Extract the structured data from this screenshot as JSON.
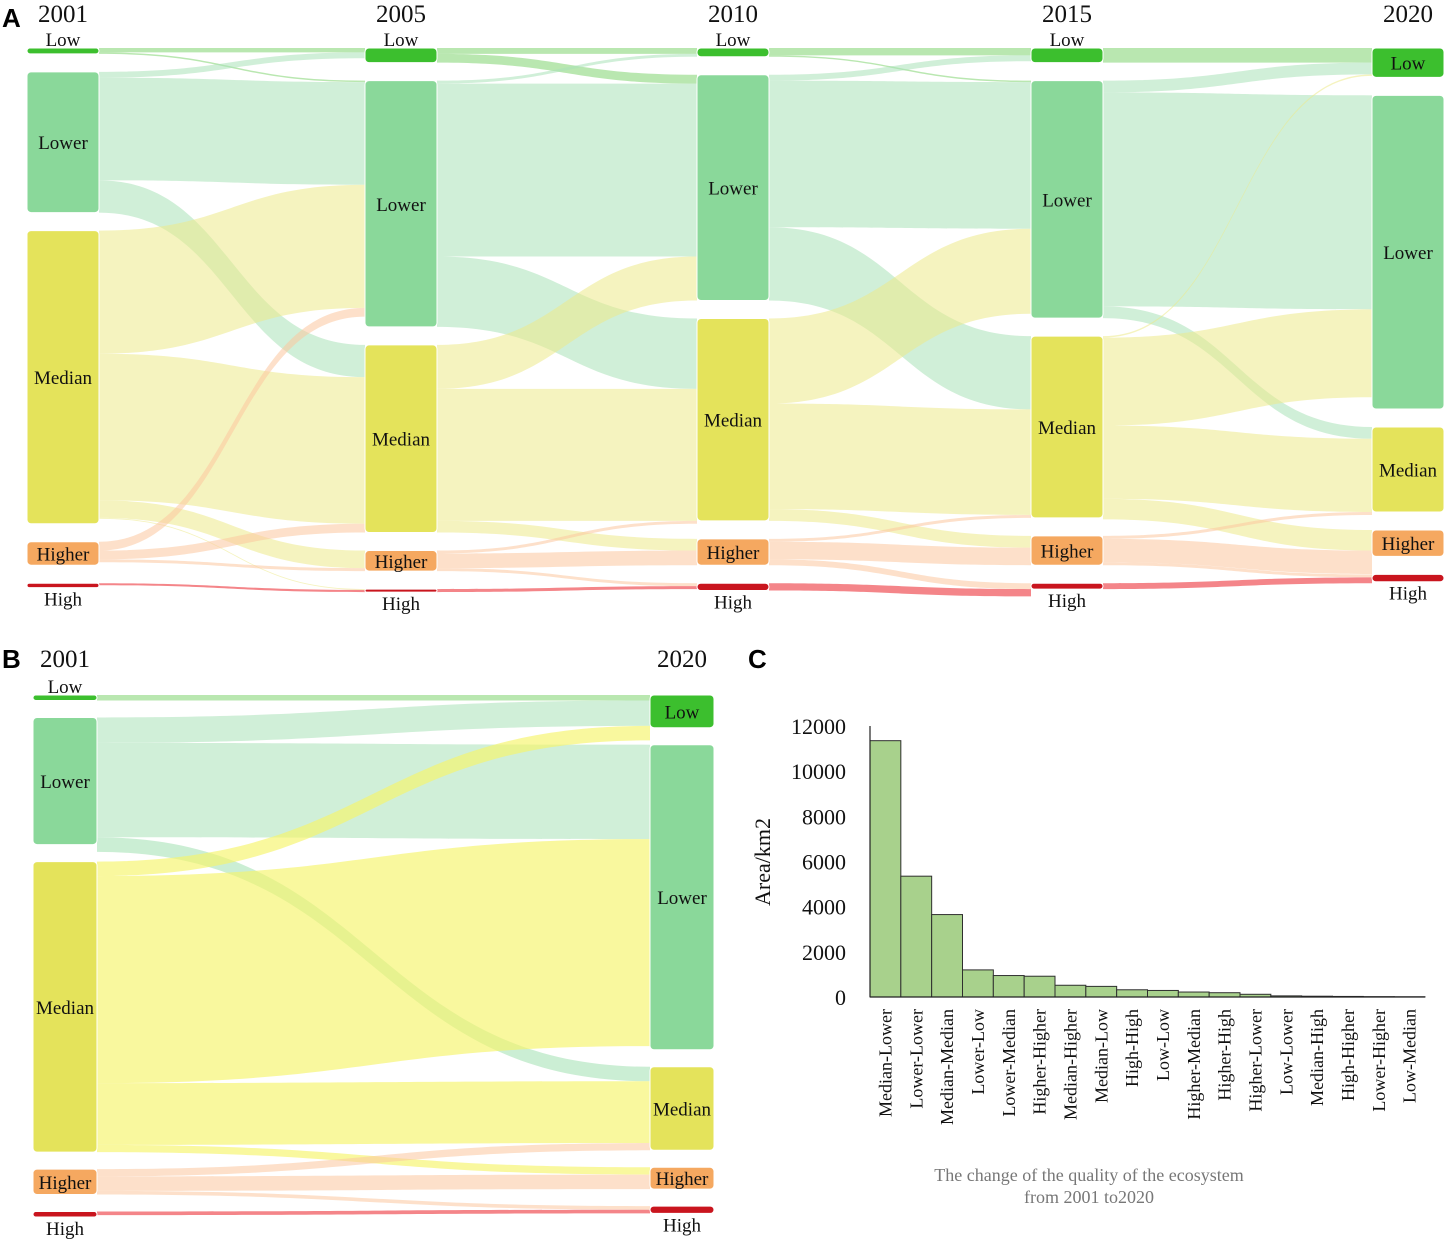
{
  "figure": {
    "panel_a_letter": "A",
    "panel_b_letter": "B",
    "panel_c_letter": "C"
  },
  "colors": {
    "Low": "#3cbf2e",
    "Lower": "#8ad89a",
    "Median": "#e4e35b",
    "Higher": "#f5a860",
    "High": "#c9151e",
    "flow_Low": "#7fd46f",
    "flow_Lower": "#a9e2b8",
    "flow_Median": "#ecea8a",
    "flow_Higher": "#fcc79e",
    "flow_High": "#f05c62",
    "flow_b_Median": "#f6f56a",
    "bar_fill": "#a8d18c",
    "bar_stroke": "#2f2f2f"
  },
  "chart_data": [
    {
      "type": "sankey",
      "panel": "A",
      "years": [
        "2001",
        "2005",
        "2010",
        "2015",
        "2020"
      ],
      "classes": [
        "Low",
        "Lower",
        "Median",
        "Higher",
        "High"
      ],
      "node_values": {
        "2001": [
          2,
          48,
          100,
          8,
          1.5
        ],
        "2005": [
          5,
          84,
          64,
          7,
          1
        ],
        "2010": [
          3,
          77,
          69,
          9,
          2.5
        ],
        "2015": [
          5,
          81,
          62,
          10,
          2
        ],
        "2020": [
          10,
          107,
          29,
          9,
          2.5
        ]
      },
      "flows": [
        [
          [
            0,
            0,
            1.5
          ],
          [
            0,
            1,
            0.5
          ],
          [
            1,
            0,
            2
          ],
          [
            1,
            1,
            35
          ],
          [
            1,
            2,
            11
          ],
          [
            2,
            1,
            42
          ],
          [
            2,
            2,
            50
          ],
          [
            2,
            3,
            6
          ],
          [
            2,
            4,
            0.3
          ],
          [
            3,
            1,
            3
          ],
          [
            3,
            2,
            3
          ],
          [
            3,
            3,
            1
          ],
          [
            4,
            4,
            0.7
          ]
        ],
        [
          [
            0,
            0,
            2
          ],
          [
            0,
            1,
            3
          ],
          [
            1,
            0,
            1
          ],
          [
            1,
            1,
            59
          ],
          [
            1,
            2,
            24
          ],
          [
            2,
            1,
            15
          ],
          [
            2,
            2,
            45
          ],
          [
            2,
            3,
            4
          ],
          [
            3,
            2,
            1
          ],
          [
            3,
            3,
            5
          ],
          [
            3,
            4,
            1
          ],
          [
            4,
            4,
            1
          ]
        ],
        [
          [
            0,
            0,
            2.5
          ],
          [
            0,
            1,
            0.5
          ],
          [
            1,
            0,
            2
          ],
          [
            1,
            1,
            50
          ],
          [
            1,
            2,
            25
          ],
          [
            2,
            1,
            29
          ],
          [
            2,
            2,
            36
          ],
          [
            2,
            3,
            4
          ],
          [
            3,
            2,
            1
          ],
          [
            3,
            3,
            6
          ],
          [
            3,
            4,
            2
          ],
          [
            4,
            4,
            2.5
          ]
        ],
        [
          [
            0,
            0,
            5
          ],
          [
            1,
            0,
            4
          ],
          [
            1,
            1,
            73
          ],
          [
            1,
            2,
            4
          ],
          [
            2,
            0,
            0.5
          ],
          [
            2,
            1,
            30
          ],
          [
            2,
            2,
            25
          ],
          [
            2,
            3,
            7
          ],
          [
            3,
            2,
            1
          ],
          [
            3,
            3,
            8
          ],
          [
            3,
            4,
            1
          ],
          [
            4,
            4,
            2
          ]
        ]
      ]
    },
    {
      "type": "sankey",
      "panel": "B",
      "years": [
        "2001",
        "2020"
      ],
      "classes": [
        "Low",
        "Lower",
        "Median",
        "Higher",
        "High"
      ],
      "node_values": {
        "2001": [
          1.5,
          35,
          80,
          7,
          1.5
        ],
        "2020": [
          9,
          84,
          23,
          6,
          2
        ]
      },
      "flows": [
        [
          [
            0,
            0,
            1.5
          ],
          [
            1,
            0,
            7
          ],
          [
            1,
            1,
            26
          ],
          [
            1,
            2,
            4
          ],
          [
            2,
            0,
            4
          ],
          [
            2,
            1,
            57
          ],
          [
            2,
            2,
            17
          ],
          [
            2,
            3,
            2
          ],
          [
            3,
            2,
            2
          ],
          [
            3,
            3,
            4
          ],
          [
            3,
            4,
            1
          ],
          [
            4,
            4,
            1
          ]
        ]
      ]
    },
    {
      "type": "bar",
      "panel": "C",
      "categories": [
        "Median-Lower",
        "Lower-Lower",
        "Median-Median",
        "Lower-Low",
        "Lower-Median",
        "Higher-Higher",
        "Median-Higher",
        "Median-Low",
        "High-High",
        "Low-Low",
        "Higher-Median",
        "Higher-High",
        "Higher-Lower",
        "Low-Lower",
        "Median-High",
        "High-Higher",
        "Lower-Higher",
        "Low-Median"
      ],
      "values": [
        11350,
        5350,
        3650,
        1200,
        950,
        920,
        520,
        470,
        320,
        290,
        220,
        190,
        120,
        50,
        35,
        25,
        15,
        10
      ],
      "ylabel": "Area/km2",
      "xlabel_line1": "The change of the quality of the ecosystem",
      "xlabel_line2": "from 2001 to2020",
      "ylim": [
        0,
        12000
      ],
      "yticks": [
        "0",
        "2000",
        "4000",
        "6000",
        "8000",
        "10000",
        "12000"
      ]
    }
  ]
}
